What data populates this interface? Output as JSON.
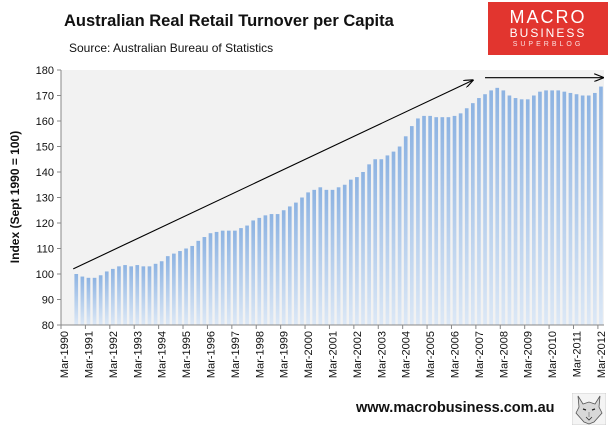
{
  "header": {
    "title": "Australian Real Retail Turnover per Capita",
    "subtitle": "Source: Australian Bureau of Statistics"
  },
  "logo": {
    "line1": "MACRO",
    "line2": "BUSINESS",
    "line3": "SUPERBLOG"
  },
  "footer": {
    "url": "www.macrobusiness.com.au"
  },
  "colors": {
    "bar_top": "#8db3e2",
    "bar_bottom": "#dce8f6",
    "plot_bg": "#f2f2f2",
    "logo_red": "#e2352f"
  },
  "chart_data": {
    "type": "bar",
    "title": "Australian Real Retail Turnover per Capita",
    "ylabel": "Index (Sept 1990 = 100)",
    "xlabel": "",
    "ylim": [
      80,
      180
    ],
    "yticks": [
      80,
      90,
      100,
      110,
      120,
      130,
      140,
      150,
      160,
      170,
      180
    ],
    "xtick_labels": [
      "Mar-1990",
      "Mar-1991",
      "Mar-1992",
      "Mar-1993",
      "Mar-1994",
      "Mar-1995",
      "Mar-1996",
      "Mar-1997",
      "Mar-1998",
      "Mar-1999",
      "Mar-2000",
      "Mar-2001",
      "Mar-2002",
      "Mar-2003",
      "Mar-2004",
      "Mar-2005",
      "Mar-2006",
      "Mar-2007",
      "Mar-2008",
      "Mar-2009",
      "Mar-2010",
      "Mar-2011",
      "Mar-2012"
    ],
    "legend": "none",
    "grid": false,
    "annotations": [
      "trend arrow Sep-1990 to Dec-2006",
      "flat arrow Jun-2007 to Mar-2012"
    ],
    "x": [
      "Sep-1990",
      "Dec-1990",
      "Mar-1991",
      "Jun-1991",
      "Sep-1991",
      "Dec-1991",
      "Mar-1992",
      "Jun-1992",
      "Sep-1992",
      "Dec-1992",
      "Mar-1993",
      "Jun-1993",
      "Sep-1993",
      "Dec-1993",
      "Mar-1994",
      "Jun-1994",
      "Sep-1994",
      "Dec-1994",
      "Mar-1995",
      "Jun-1995",
      "Sep-1995",
      "Dec-1995",
      "Mar-1996",
      "Jun-1996",
      "Sep-1996",
      "Dec-1996",
      "Mar-1997",
      "Jun-1997",
      "Sep-1997",
      "Dec-1997",
      "Mar-1998",
      "Jun-1998",
      "Sep-1998",
      "Dec-1998",
      "Mar-1999",
      "Jun-1999",
      "Sep-1999",
      "Dec-1999",
      "Mar-2000",
      "Jun-2000",
      "Sep-2000",
      "Dec-2000",
      "Mar-2001",
      "Jun-2001",
      "Sep-2001",
      "Dec-2001",
      "Mar-2002",
      "Jun-2002",
      "Sep-2002",
      "Dec-2002",
      "Mar-2003",
      "Jun-2003",
      "Sep-2003",
      "Dec-2003",
      "Mar-2004",
      "Jun-2004",
      "Sep-2004",
      "Dec-2004",
      "Mar-2005",
      "Jun-2005",
      "Sep-2005",
      "Dec-2005",
      "Mar-2006",
      "Jun-2006",
      "Sep-2006",
      "Dec-2006",
      "Mar-2007",
      "Jun-2007",
      "Sep-2007",
      "Dec-2007",
      "Mar-2008",
      "Jun-2008",
      "Sep-2008",
      "Dec-2008",
      "Mar-2009",
      "Jun-2009",
      "Sep-2009",
      "Dec-2009",
      "Mar-2010",
      "Jun-2010",
      "Sep-2010",
      "Dec-2010",
      "Mar-2011",
      "Jun-2011",
      "Sep-2011",
      "Dec-2011",
      "Mar-2012"
    ],
    "values": [
      100,
      99,
      98.5,
      98.5,
      99.5,
      101,
      102,
      103,
      103.5,
      103,
      103.5,
      103,
      103,
      104,
      105,
      107,
      108,
      109,
      110,
      111,
      113,
      114.5,
      116,
      116.5,
      117,
      117,
      117,
      118,
      119,
      121,
      122,
      123,
      123.5,
      123.5,
      125,
      126.5,
      128,
      130,
      132,
      133,
      134,
      133,
      133,
      134,
      135,
      137,
      138,
      140,
      143,
      145,
      145,
      146.5,
      148,
      150,
      154,
      158,
      161,
      162,
      162,
      161.5,
      161.5,
      161.5,
      162,
      163,
      165,
      167,
      169,
      170.5,
      172,
      173,
      172,
      170,
      169,
      168.5,
      168.5,
      170,
      171.5,
      172,
      172,
      172,
      171.5,
      171,
      170.5,
      170,
      170,
      171,
      173.5
    ]
  }
}
